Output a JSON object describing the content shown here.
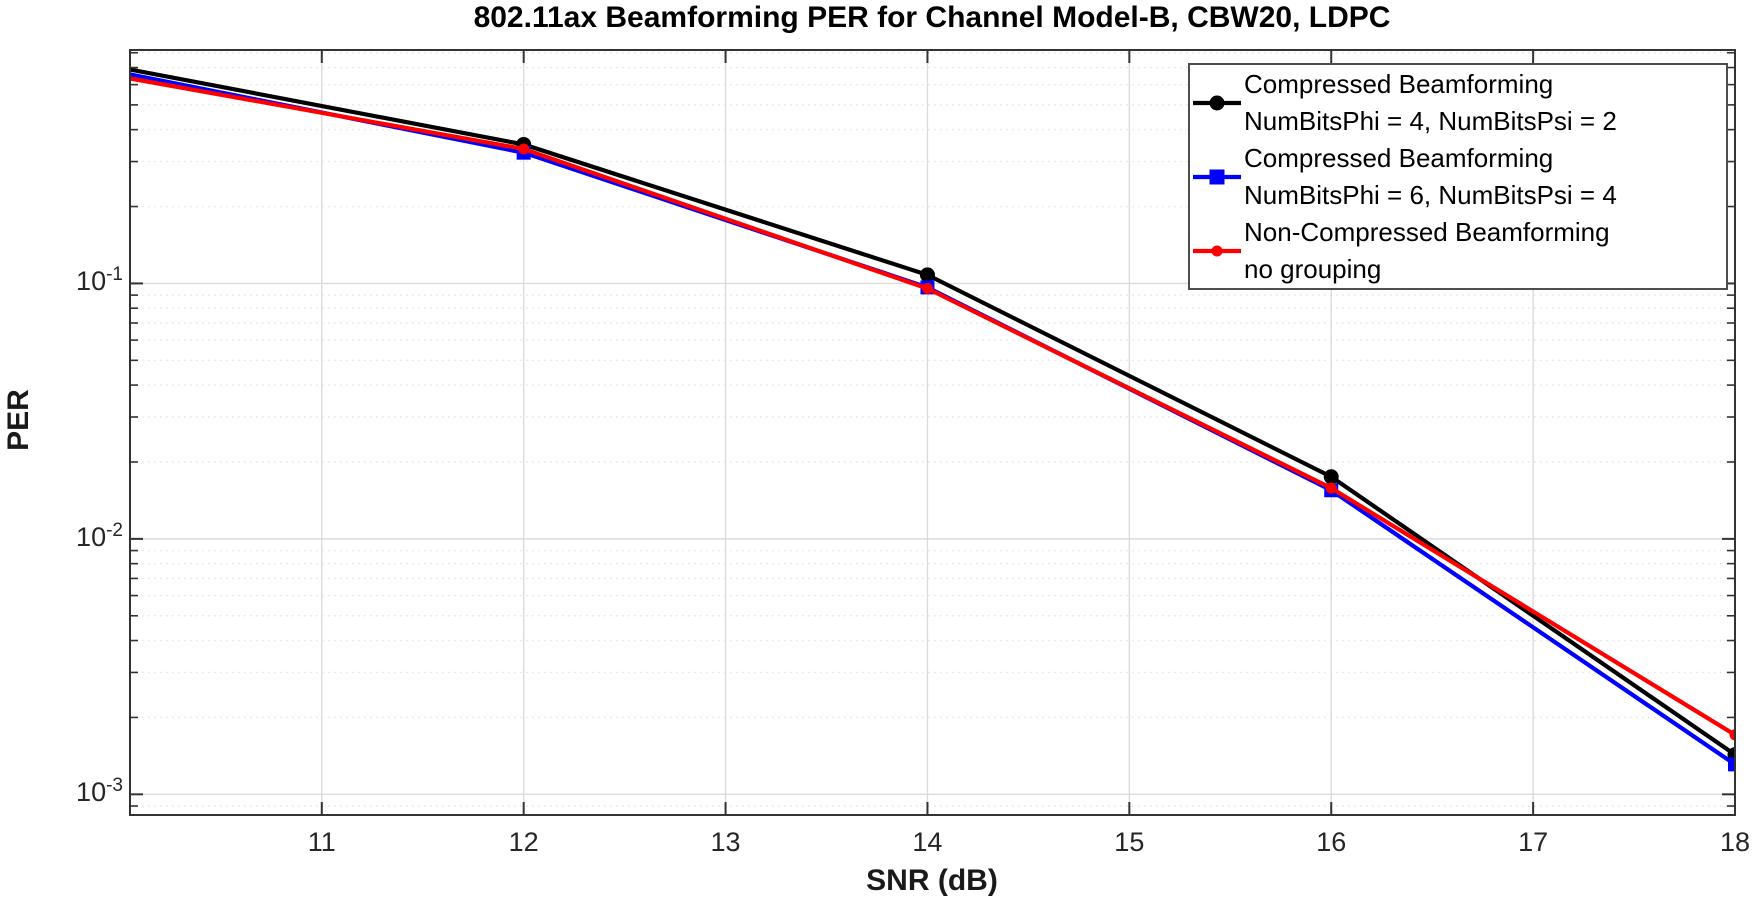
{
  "figure": {
    "background": "#ffffff"
  },
  "chart_data": {
    "type": "line",
    "title": "802.11ax Beamforming PER for Channel Model-B, CBW20, LDPC",
    "xlabel": "SNR (dB)",
    "ylabel": "PER",
    "x_scale": "linear",
    "y_scale": "log",
    "xlim": [
      10.05,
      18
    ],
    "ylim": [
      0.00083,
      0.82
    ],
    "x_ticks": [
      "11",
      "12",
      "13",
      "14",
      "15",
      "16",
      "17",
      "18"
    ],
    "x_tick_values": [
      11,
      12,
      13,
      14,
      15,
      16,
      17,
      18
    ],
    "y_tick_exponents": [
      -1,
      -2,
      -3
    ],
    "grid": "major solid, minor dotted",
    "legend_position": "northeast",
    "series": [
      {
        "name": "Compressed Beamforming NumBitsPhi = 4, NumBitsPsi = 2",
        "label_line1": "Compressed Beamforming",
        "label_line2": "NumBitsPhi = 4, NumBitsPsi = 2",
        "color": "#000000",
        "marker": "circle",
        "x": [
          10,
          12,
          14,
          16,
          18
        ],
        "y": [
          0.7,
          0.35,
          0.108,
          0.0175,
          0.00143
        ]
      },
      {
        "name": "Compressed Beamforming NumBitsPhi = 6, NumBitsPsi = 4",
        "label_line1": "Compressed Beamforming",
        "label_line2": "NumBitsPhi = 6, NumBitsPsi = 4",
        "color": "#0000ff",
        "marker": "square",
        "x": [
          10,
          12,
          14,
          16,
          18
        ],
        "y": [
          0.67,
          0.325,
          0.0965,
          0.0155,
          0.00131
        ]
      },
      {
        "name": "Non-Compressed Beamforming no grouping",
        "label_line1": "Non-Compressed Beamforming",
        "label_line2": "no grouping",
        "color": "#ff0000",
        "marker": "dot",
        "x": [
          10,
          12,
          14,
          16,
          18
        ],
        "y": [
          0.645,
          0.336,
          0.0955,
          0.0158,
          0.00171
        ]
      }
    ],
    "style_colors": {
      "axis": "#333333",
      "grid_major": "#dbdbdb",
      "grid_minor": "#e4e4e4",
      "legend_border": "#4d4d4d"
    }
  }
}
